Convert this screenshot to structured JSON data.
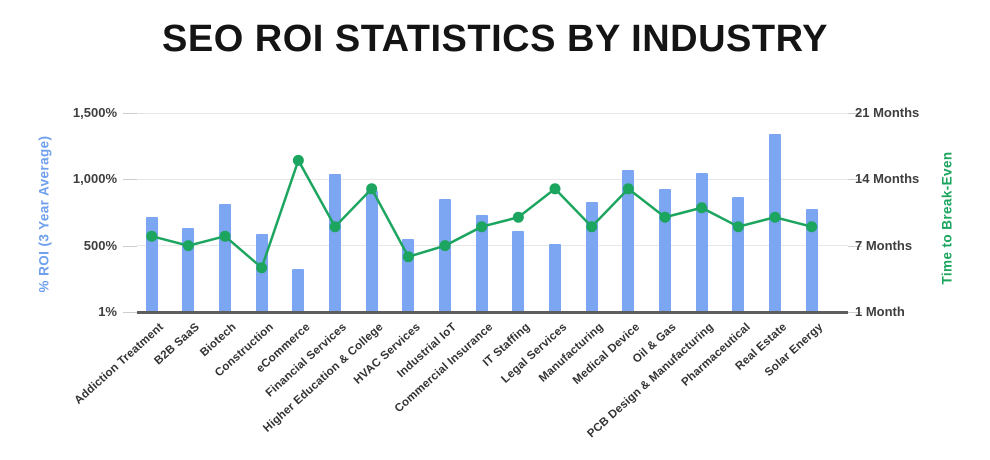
{
  "title": "SEO ROI STATISTICS BY INDUSTRY",
  "chart_data": {
    "type": "bar",
    "subtype": "combo-bar-line-dual-axis",
    "title": "SEO ROI STATISTICS BY INDUSTRY",
    "categories": [
      "Addiction Treatment",
      "B2B SaaS",
      "Biotech",
      "Construction",
      "eCommerce",
      "Financial Services",
      "Higher Education & College",
      "HVAC Services",
      "Industrial IoT",
      "Commercial Insurance",
      "IT Staffing",
      "Legal Services",
      "Manufacturing",
      "Medical Device",
      "Oil & Gas",
      "PCB Design & Manufacturing",
      "Pharmaceutical",
      "Real Estate",
      "Solar Energy"
    ],
    "series": [
      {
        "name": "% ROI (3 Year Average)",
        "type": "bar",
        "axis": "left",
        "color": "#7da6f2",
        "values": [
          709,
          624,
          806,
          577,
          314,
          1031,
          901,
          546,
          841,
          724,
          606,
          507,
          823,
          1066,
          923,
          1043,
          858,
          1338,
          770
        ]
      },
      {
        "name": "Time to Break-Even",
        "type": "line",
        "axis": "right",
        "color": "#1ba55f",
        "values": [
          8,
          7,
          8,
          5,
          16,
          9,
          13,
          6,
          7,
          9,
          10,
          13,
          9,
          13,
          10,
          11,
          9,
          10,
          9
        ]
      }
    ],
    "left_axis": {
      "label": "% ROI (3 Year Average)",
      "label_color": "#6fa0ee",
      "tick_labels": [
        "1%",
        "500%",
        "1,000%",
        "1,500%"
      ],
      "tick_values": [
        1,
        500,
        1000,
        1500
      ],
      "range": [
        1,
        1500
      ]
    },
    "right_axis": {
      "label": "Time to Break-Even",
      "label_color": "#1ba55f",
      "tick_labels": [
        "1 Month",
        "7 Months",
        "14 Months",
        "21 Months"
      ],
      "tick_values": [
        1,
        7,
        14,
        21
      ],
      "range": [
        1,
        21
      ]
    },
    "grid": true,
    "legend": "none",
    "background": "#ffffff",
    "gridline_color": "#e6e6e6",
    "baseline_color": "#5d5d5d"
  }
}
